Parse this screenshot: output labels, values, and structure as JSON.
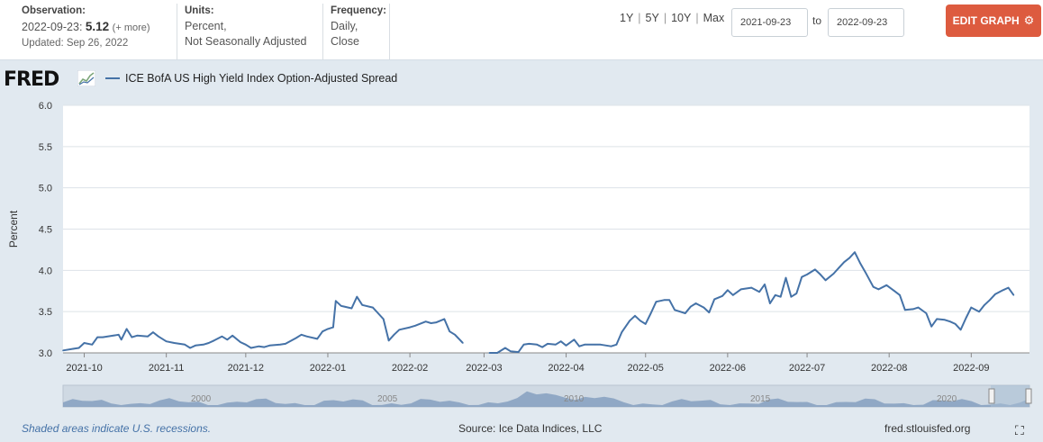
{
  "header": {
    "observation_label": "Observation:",
    "observation_date": "2022-09-23:",
    "observation_value": "5.12",
    "observation_more": "(+ more)",
    "updated": "Updated: Sep 26, 2022",
    "units_label": "Units:",
    "units_line1": "Percent,",
    "units_line2": "Not Seasonally Adjusted",
    "frequency_label": "Frequency:",
    "frequency_line1": "Daily,",
    "frequency_line2": "Close",
    "ranges": [
      "1Y",
      "5Y",
      "10Y",
      "Max"
    ],
    "start_date": "2021-09-23",
    "to_label": "to",
    "end_date": "2022-09-23",
    "edit_button": "EDIT GRAPH"
  },
  "logo": {
    "text": "FRED"
  },
  "footer": {
    "recession_note": "Shaded areas indicate U.S. recessions.",
    "source": "Source: Ice Data Indices, LLC",
    "site": "fred.stlouisfed.org"
  },
  "colors": {
    "line": "#4572a7",
    "accent": "#dd5b3f",
    "background": "#e1e9f0",
    "plot": "#ffffff"
  },
  "icons": {
    "gear": "gear-icon",
    "fullscreen": "fullscreen-icon",
    "logo_mark": "fred-graph-icon"
  },
  "chart_data": {
    "type": "line",
    "title": "",
    "ylabel": "Percent",
    "xlabel": "",
    "ylim": [
      3.0,
      6.0
    ],
    "yticks": [
      "3.0",
      "3.5",
      "4.0",
      "4.5",
      "5.0",
      "5.5",
      "6.0"
    ],
    "xlim": [
      "2021-09-23",
      "2022-09-23"
    ],
    "xticks": [
      {
        "date": "2021-10-01",
        "label": "2021-10"
      },
      {
        "date": "2021-11-01",
        "label": "2021-11"
      },
      {
        "date": "2021-12-01",
        "label": "2021-12"
      },
      {
        "date": "2022-01-01",
        "label": "2022-01"
      },
      {
        "date": "2022-02-01",
        "label": "2022-02"
      },
      {
        "date": "2022-03-01",
        "label": "2022-03"
      },
      {
        "date": "2022-04-01",
        "label": "2022-04"
      },
      {
        "date": "2022-05-01",
        "label": "2022-05"
      },
      {
        "date": "2022-06-01",
        "label": "2022-06"
      },
      {
        "date": "2022-07-01",
        "label": "2022-07"
      },
      {
        "date": "2022-08-01",
        "label": "2022-08"
      },
      {
        "date": "2022-09-01",
        "label": "2022-09"
      }
    ],
    "grid": true,
    "legend": "top-left",
    "series": [
      {
        "name": "ICE BofA US High Yield Index Option-Adjusted Spread",
        "color": "#4572a7",
        "segments": [
          [
            [
              "2021-09-23",
              3.03
            ],
            [
              "2021-09-27",
              3.05
            ],
            [
              "2021-09-29",
              3.06
            ],
            [
              "2021-10-01",
              3.12
            ],
            [
              "2021-10-04",
              3.1
            ],
            [
              "2021-10-06",
              3.19
            ],
            [
              "2021-10-08",
              3.19
            ],
            [
              "2021-10-12",
              3.21
            ],
            [
              "2021-10-14",
              3.22
            ],
            [
              "2021-10-15",
              3.16
            ],
            [
              "2021-10-17",
              3.29
            ],
            [
              "2021-10-19",
              3.19
            ],
            [
              "2021-10-21",
              3.21
            ],
            [
              "2021-10-25",
              3.2
            ],
            [
              "2021-10-27",
              3.25
            ],
            [
              "2021-10-29",
              3.2
            ],
            [
              "2021-11-01",
              3.14
            ],
            [
              "2021-11-04",
              3.12
            ],
            [
              "2021-11-08",
              3.1
            ],
            [
              "2021-11-10",
              3.06
            ],
            [
              "2021-11-12",
              3.09
            ],
            [
              "2021-11-15",
              3.1
            ],
            [
              "2021-11-17",
              3.12
            ],
            [
              "2021-11-19",
              3.15
            ],
            [
              "2021-11-22",
              3.2
            ],
            [
              "2021-11-24",
              3.16
            ],
            [
              "2021-11-26",
              3.21
            ],
            [
              "2021-11-29",
              3.13
            ],
            [
              "2021-12-01",
              3.1
            ],
            [
              "2021-12-03",
              3.06
            ],
            [
              "2021-12-06",
              3.08
            ],
            [
              "2021-12-08",
              3.07
            ],
            [
              "2021-12-10",
              3.09
            ],
            [
              "2021-12-14",
              3.1
            ],
            [
              "2021-12-16",
              3.11
            ],
            [
              "2021-12-20",
              3.18
            ],
            [
              "2021-12-22",
              3.22
            ],
            [
              "2021-12-24",
              3.2
            ],
            [
              "2021-12-28",
              3.17
            ],
            [
              "2021-12-30",
              3.26
            ],
            [
              "2022-01-01",
              3.29
            ],
            [
              "2022-01-03",
              3.31
            ],
            [
              "2022-01-04",
              3.63
            ],
            [
              "2022-01-06",
              3.57
            ],
            [
              "2022-01-10",
              3.54
            ],
            [
              "2022-01-12",
              3.68
            ],
            [
              "2022-01-14",
              3.58
            ],
            [
              "2022-01-18",
              3.55
            ],
            [
              "2022-01-20",
              3.48
            ],
            [
              "2022-01-22",
              3.41
            ],
            [
              "2022-01-24",
              3.15
            ],
            [
              "2022-01-26",
              3.22
            ],
            [
              "2022-01-28",
              3.28
            ],
            [
              "2022-02-01",
              3.31
            ],
            [
              "2022-02-03",
              3.33
            ],
            [
              "2022-02-07",
              3.38
            ],
            [
              "2022-02-09",
              3.36
            ],
            [
              "2022-02-11",
              3.37
            ],
            [
              "2022-02-14",
              3.41
            ],
            [
              "2022-02-16",
              3.26
            ],
            [
              "2022-02-18",
              3.22
            ],
            [
              "2022-02-21",
              3.12
            ]
          ],
          [
            [
              "2022-03-03",
              3.0
            ],
            [
              "2022-03-06",
              3.0
            ],
            [
              "2022-03-09",
              3.06
            ],
            [
              "2022-03-11",
              3.02
            ],
            [
              "2022-03-14",
              3.01
            ],
            [
              "2022-03-16",
              3.1
            ],
            [
              "2022-03-18",
              3.11
            ],
            [
              "2022-03-21",
              3.1
            ],
            [
              "2022-03-23",
              3.07
            ],
            [
              "2022-03-25",
              3.11
            ],
            [
              "2022-03-28",
              3.1
            ],
            [
              "2022-03-30",
              3.14
            ],
            [
              "2022-04-01",
              3.09
            ],
            [
              "2022-04-04",
              3.16
            ],
            [
              "2022-04-06",
              3.08
            ],
            [
              "2022-04-08",
              3.1
            ],
            [
              "2022-04-12",
              3.1
            ],
            [
              "2022-04-14",
              3.1
            ],
            [
              "2022-04-18",
              3.08
            ],
            [
              "2022-04-20",
              3.1
            ],
            [
              "2022-04-22",
              3.25
            ],
            [
              "2022-04-25",
              3.39
            ],
            [
              "2022-04-27",
              3.45
            ],
            [
              "2022-04-29",
              3.39
            ],
            [
              "2022-05-01",
              3.35
            ],
            [
              "2022-05-03",
              3.48
            ],
            [
              "2022-05-05",
              3.62
            ],
            [
              "2022-05-08",
              3.64
            ],
            [
              "2022-05-10",
              3.64
            ],
            [
              "2022-05-12",
              3.52
            ],
            [
              "2022-05-16",
              3.48
            ],
            [
              "2022-05-18",
              3.56
            ],
            [
              "2022-05-20",
              3.6
            ],
            [
              "2022-05-23",
              3.55
            ],
            [
              "2022-05-25",
              3.49
            ],
            [
              "2022-05-27",
              3.65
            ],
            [
              "2022-05-30",
              3.69
            ],
            [
              "2022-06-01",
              3.76
            ],
            [
              "2022-06-03",
              3.7
            ],
            [
              "2022-06-06",
              3.77
            ],
            [
              "2022-06-08",
              3.78
            ],
            [
              "2022-06-10",
              3.79
            ],
            [
              "2022-06-13",
              3.74
            ],
            [
              "2022-06-15",
              3.83
            ],
            [
              "2022-06-17",
              3.6
            ],
            [
              "2022-06-19",
              3.7
            ],
            [
              "2022-06-21",
              3.68
            ],
            [
              "2022-06-23",
              3.91
            ],
            [
              "2022-06-25",
              3.68
            ],
            [
              "2022-06-27",
              3.72
            ],
            [
              "2022-06-29",
              3.92
            ],
            [
              "2022-07-01",
              3.95
            ],
            [
              "2022-07-04",
              4.01
            ],
            [
              "2022-07-06",
              3.95
            ],
            [
              "2022-07-08",
              3.88
            ],
            [
              "2022-07-11",
              3.96
            ],
            [
              "2022-07-13",
              4.03
            ],
            [
              "2022-07-15",
              4.1
            ],
            [
              "2022-07-17",
              4.15
            ],
            [
              "2022-07-19",
              4.22
            ],
            [
              "2022-07-21",
              4.09
            ],
            [
              "2022-07-23",
              3.98
            ],
            [
              "2022-07-26",
              3.8
            ],
            [
              "2022-07-28",
              3.77
            ],
            [
              "2022-07-31",
              3.82
            ],
            [
              "2022-08-03",
              3.75
            ],
            [
              "2022-08-05",
              3.7
            ],
            [
              "2022-08-07",
              3.52
            ],
            [
              "2022-08-10",
              3.53
            ],
            [
              "2022-08-12",
              3.55
            ],
            [
              "2022-08-15",
              3.48
            ],
            [
              "2022-08-17",
              3.32
            ],
            [
              "2022-08-19",
              3.41
            ],
            [
              "2022-08-22",
              3.4
            ],
            [
              "2022-08-24",
              3.38
            ],
            [
              "2022-08-26",
              3.35
            ],
            [
              "2022-08-28",
              3.28
            ],
            [
              "2022-08-30",
              3.42
            ],
            [
              "2022-09-01",
              3.55
            ],
            [
              "2022-09-04",
              3.5
            ],
            [
              "2022-09-06",
              3.58
            ],
            [
              "2022-09-08",
              3.64
            ],
            [
              "2022-09-10",
              3.71
            ],
            [
              "2022-09-13",
              3.76
            ],
            [
              "2022-09-15",
              3.79
            ],
            [
              "2022-09-17",
              3.7
            ]
          ]
        ],
        "note_rescale": false
      }
    ]
  }
}
